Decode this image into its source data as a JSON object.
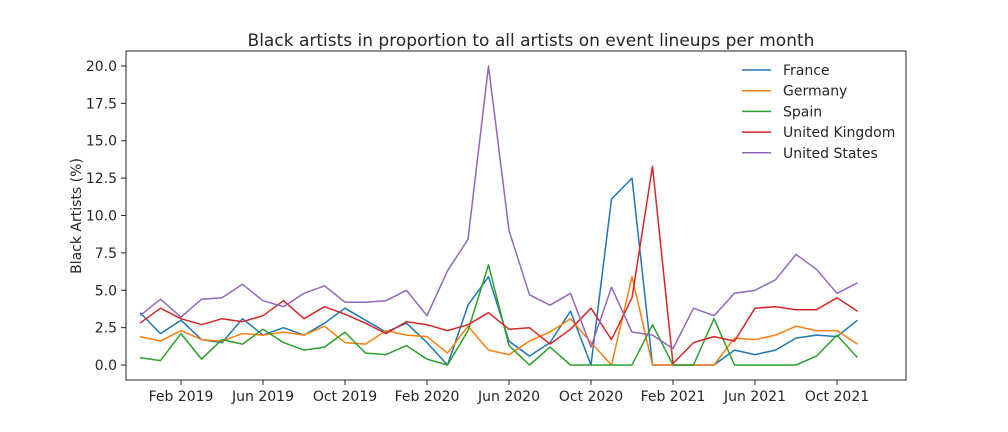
{
  "chart_data": {
    "type": "line",
    "title": "Black artists in proportion to all artists on event lineups per month",
    "xlabel": "",
    "ylabel": "Black Artists (%)",
    "ylim": [
      -1.0,
      21.0
    ],
    "yticks": [
      0.0,
      2.5,
      5.0,
      7.5,
      10.0,
      12.5,
      15.0,
      17.5,
      20.0
    ],
    "ytick_labels": [
      "0.0",
      "2.5",
      "5.0",
      "7.5",
      "10.0",
      "12.5",
      "15.0",
      "17.5",
      "20.0"
    ],
    "x": [
      "2018-12",
      "2019-01",
      "2019-02",
      "2019-03",
      "2019-04",
      "2019-05",
      "2019-06",
      "2019-07",
      "2019-08",
      "2019-09",
      "2019-10",
      "2019-11",
      "2019-12",
      "2020-01",
      "2020-02",
      "2020-03",
      "2020-04",
      "2020-05",
      "2020-06",
      "2020-07",
      "2020-08",
      "2020-09",
      "2020-10",
      "2020-11",
      "2020-12",
      "2021-01",
      "2021-02",
      "2021-03",
      "2021-04",
      "2021-05",
      "2021-06",
      "2021-07",
      "2021-08",
      "2021-09",
      "2021-10",
      "2021-11",
      "2021-12"
    ],
    "xtick_positions": [
      "2019-02",
      "2019-06",
      "2019-10",
      "2020-02",
      "2020-06",
      "2020-10",
      "2021-02",
      "2021-06",
      "2021-10"
    ],
    "xtick_labels": [
      "Feb 2019",
      "Jun 2019",
      "Oct 2019",
      "Feb 2020",
      "Jun 2020",
      "Oct 2020",
      "Feb 2021",
      "Jun 2021",
      "Oct 2021"
    ],
    "legend_position": "top-right",
    "grid": false,
    "series": [
      {
        "name": "France",
        "color": "#1f77b4",
        "values": [
          3.5,
          2.1,
          3.0,
          1.7,
          1.5,
          3.1,
          2.0,
          2.5,
          2.0,
          2.8,
          3.8,
          3.0,
          2.2,
          2.8,
          1.5,
          0.0,
          4.0,
          5.9,
          1.6,
          0.6,
          1.5,
          3.6,
          0.0,
          11.1,
          12.5,
          0.0,
          0.0,
          0.0,
          0.0,
          1.0,
          0.7,
          1.0,
          1.8,
          2.0,
          1.9,
          3.0,
          null
        ]
      },
      {
        "name": "Germany",
        "color": "#ff7f0e",
        "values": [
          1.9,
          1.6,
          2.3,
          1.7,
          1.6,
          2.1,
          2.0,
          2.2,
          2.0,
          2.6,
          1.5,
          1.4,
          2.3,
          2.0,
          1.9,
          0.8,
          2.6,
          1.0,
          0.7,
          1.6,
          2.2,
          3.1,
          1.5,
          0.0,
          5.9,
          0.0,
          0.0,
          0.0,
          0.0,
          1.8,
          1.7,
          2.0,
          2.6,
          2.3,
          2.3,
          1.4,
          null
        ]
      },
      {
        "name": "Spain",
        "color": "#2ca02c",
        "values": [
          0.5,
          0.3,
          2.1,
          0.4,
          1.7,
          1.4,
          2.4,
          1.5,
          1.0,
          1.2,
          2.2,
          0.8,
          0.7,
          1.3,
          0.4,
          0.0,
          2.3,
          6.7,
          1.3,
          0.0,
          1.2,
          0.0,
          0.0,
          0.0,
          0.0,
          2.7,
          0.0,
          0.0,
          3.1,
          0.0,
          0.0,
          0.0,
          0.0,
          0.6,
          2.0,
          0.5,
          null
        ]
      },
      {
        "name": "United Kingdom",
        "color": "#d62728",
        "values": [
          2.8,
          3.8,
          3.1,
          2.7,
          3.1,
          2.9,
          3.3,
          4.3,
          3.1,
          3.9,
          3.4,
          2.8,
          2.1,
          2.9,
          2.7,
          2.3,
          2.7,
          3.5,
          2.4,
          2.5,
          1.4,
          2.4,
          3.8,
          1.7,
          4.5,
          13.3,
          0.1,
          1.5,
          1.9,
          1.6,
          3.8,
          3.9,
          3.7,
          3.7,
          4.5,
          3.6,
          null
        ]
      },
      {
        "name": "United States",
        "color": "#9467bd",
        "values": [
          3.3,
          4.4,
          3.2,
          4.4,
          4.5,
          5.4,
          4.3,
          3.9,
          4.8,
          5.3,
          4.2,
          4.2,
          4.3,
          5.0,
          3.3,
          6.3,
          8.4,
          20.0,
          9.0,
          4.7,
          4.0,
          4.8,
          1.2,
          5.2,
          2.2,
          2.0,
          1.1,
          3.8,
          3.3,
          4.8,
          5.0,
          5.7,
          7.4,
          6.4,
          4.8,
          5.5,
          null
        ]
      }
    ]
  }
}
